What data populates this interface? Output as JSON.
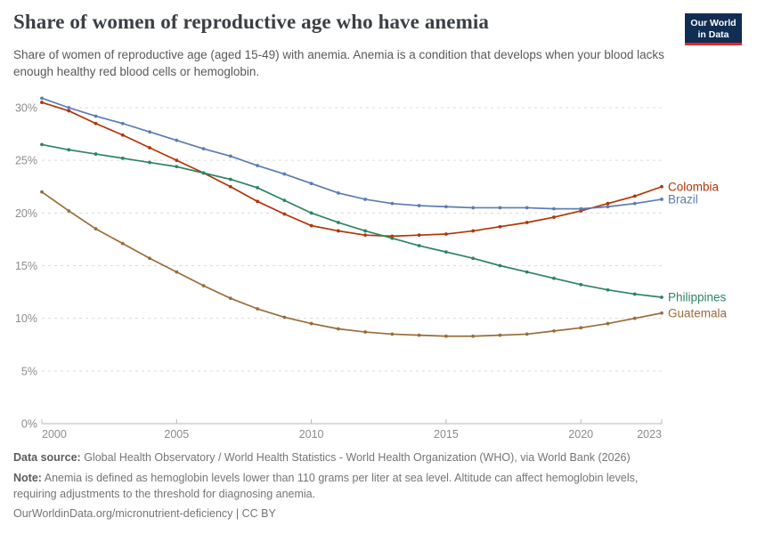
{
  "header": {
    "title": "Share of women of reproductive age who have anemia",
    "subtitle": "Share of women of reproductive age (aged 15-49) with anemia. Anemia is a condition that develops when your blood lacks enough healthy red blood cells or hemoglobin.",
    "logo": {
      "line1": "Our World",
      "line2": "in Data",
      "bg_color": "#102d54",
      "accent_color": "#df2a26"
    }
  },
  "chart_data": {
    "type": "line",
    "title": "Share of women of reproductive age who have anemia",
    "xlabel": "",
    "ylabel": "",
    "x": [
      2000,
      2001,
      2002,
      2003,
      2004,
      2005,
      2006,
      2007,
      2008,
      2009,
      2010,
      2011,
      2012,
      2013,
      2014,
      2015,
      2016,
      2017,
      2018,
      2019,
      2020,
      2021,
      2022,
      2023
    ],
    "xticks": [
      2000,
      2005,
      2010,
      2015,
      2020,
      2023
    ],
    "yticks": [
      0,
      5,
      10,
      15,
      20,
      25,
      30
    ],
    "ytick_suffix": "%",
    "ylim": [
      0,
      31.5
    ],
    "grid": "horizontal-dashed",
    "legend_position": "right-end-labels",
    "series": [
      {
        "name": "Colombia",
        "color": "#B13507",
        "values": [
          30.5,
          29.7,
          28.5,
          27.4,
          26.2,
          25.0,
          23.8,
          22.5,
          21.1,
          19.9,
          18.8,
          18.3,
          17.9,
          17.8,
          17.9,
          18.0,
          18.3,
          18.7,
          19.1,
          19.6,
          20.2,
          20.9,
          21.6,
          22.5
        ]
      },
      {
        "name": "Brazil",
        "color": "#5B7CB4",
        "values": [
          30.9,
          30.0,
          29.2,
          28.5,
          27.7,
          26.9,
          26.1,
          25.4,
          24.5,
          23.7,
          22.8,
          21.9,
          21.3,
          20.9,
          20.7,
          20.6,
          20.5,
          20.5,
          20.5,
          20.4,
          20.4,
          20.6,
          20.9,
          21.3
        ]
      },
      {
        "name": "Philippines",
        "color": "#2C8465",
        "values": [
          26.5,
          26.0,
          25.6,
          25.2,
          24.8,
          24.4,
          23.8,
          23.2,
          22.4,
          21.2,
          20.0,
          19.1,
          18.3,
          17.6,
          16.9,
          16.3,
          15.7,
          15.0,
          14.4,
          13.8,
          13.2,
          12.7,
          12.3,
          12.0
        ]
      },
      {
        "name": "Guatemala",
        "color": "#996D39",
        "values": [
          22.0,
          20.2,
          18.5,
          17.1,
          15.7,
          14.4,
          13.1,
          11.9,
          10.9,
          10.1,
          9.5,
          9.0,
          8.7,
          8.5,
          8.4,
          8.3,
          8.3,
          8.4,
          8.5,
          8.8,
          9.1,
          9.5,
          10.0,
          10.5
        ]
      }
    ]
  },
  "footer": {
    "datasource_label": "Data source:",
    "datasource_text": " Global Health Observatory / World Health Statistics - World Health Organization (WHO), via World Bank (2026)",
    "note_label": "Note:",
    "note_text": " Anemia is defined as hemoglobin levels lower than 110 grams per liter at sea level. Altitude can affect hemoglobin levels, requiring adjustments to the threshold for diagnosing anemia.",
    "link_url": "OurWorldinData.org/micronutrient-deficiency",
    "link_separator": " | ",
    "license": "CC BY"
  }
}
